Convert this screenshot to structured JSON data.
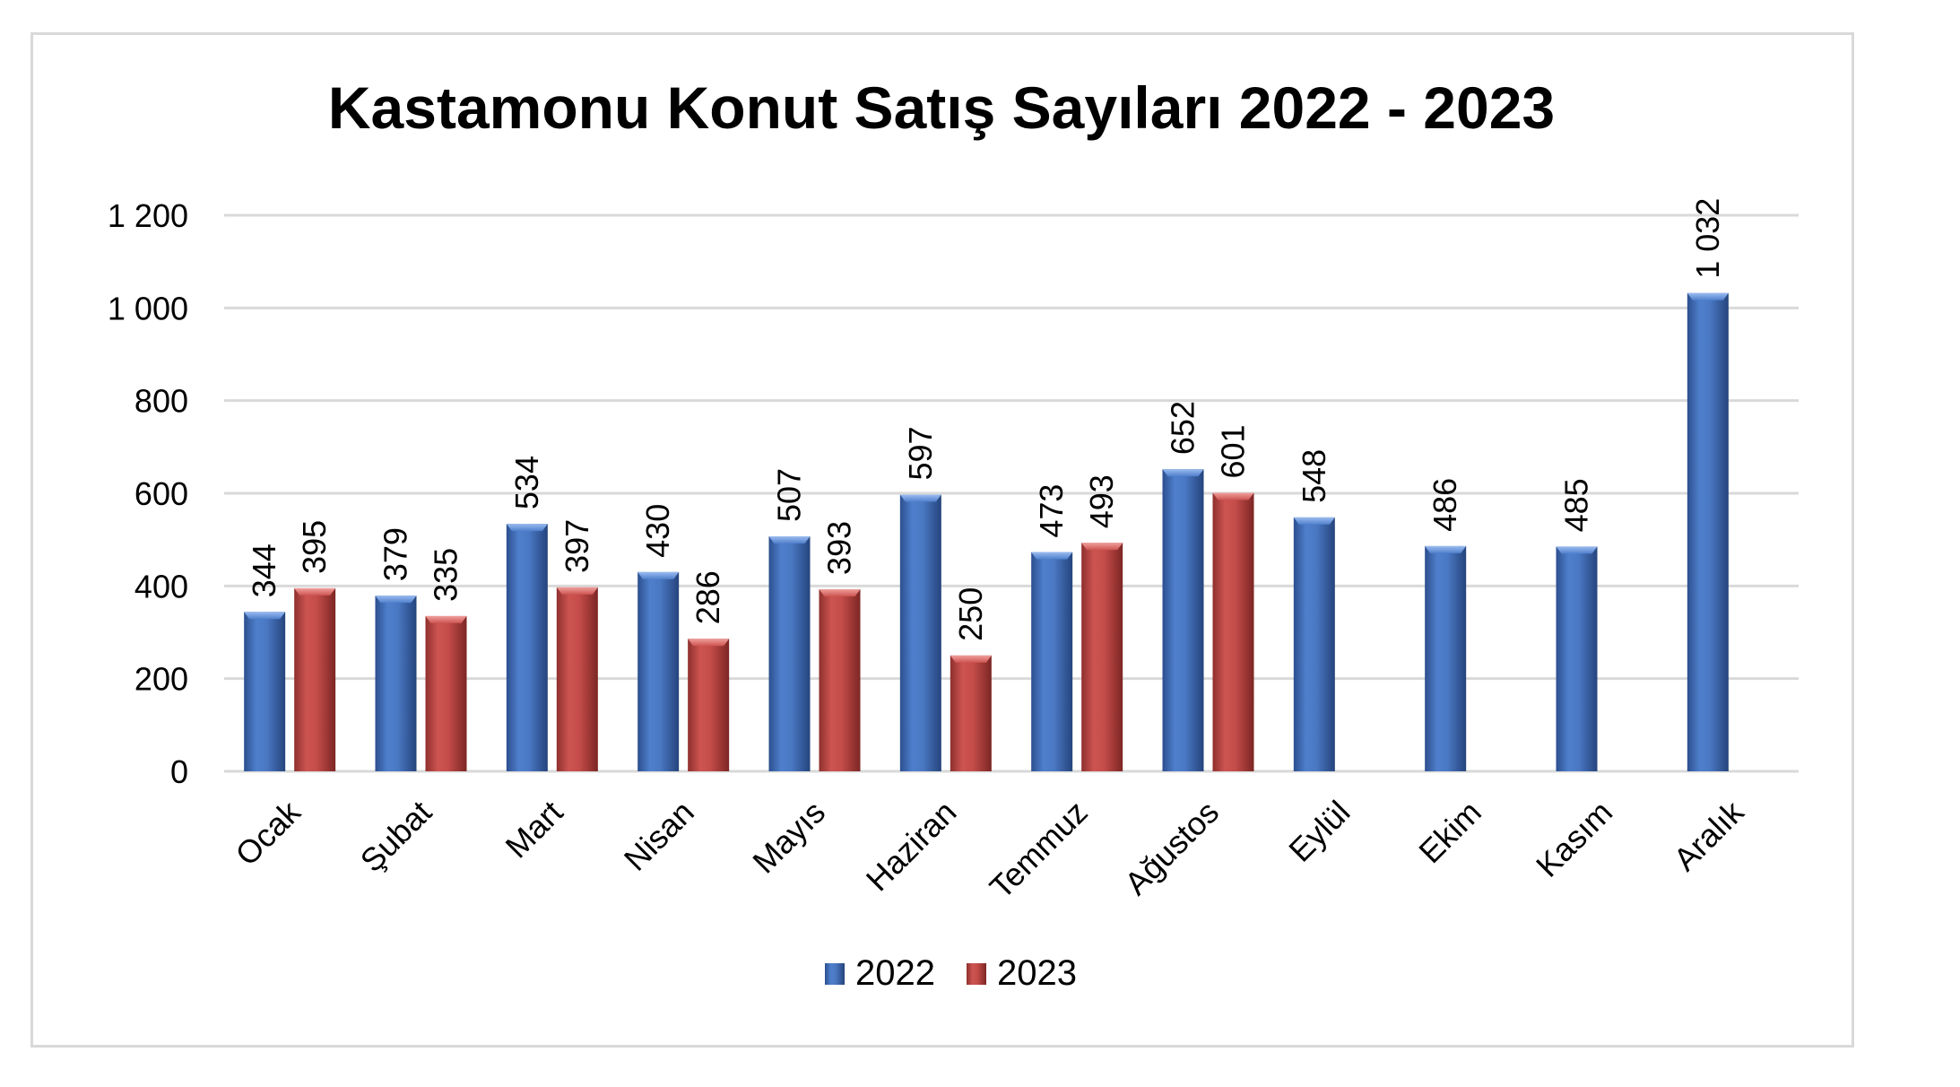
{
  "chart_data": {
    "type": "bar",
    "title": "Kastamonu Konut Satış Sayıları 2022 - 2023",
    "xlabel": "",
    "ylabel": "",
    "ylim": [
      0,
      1200
    ],
    "y_ticks": [
      0,
      200,
      400,
      600,
      800,
      1000,
      1200
    ],
    "y_tick_labels": [
      "0",
      "200",
      "400",
      "600",
      "800",
      "1 000",
      "1 200"
    ],
    "categories": [
      "Ocak",
      "Şubat",
      "Mart",
      "Nisan",
      "Mayıs",
      "Haziran",
      "Temmuz",
      "Ağustos",
      "Eylül",
      "Ekim",
      "Kasım",
      "Aralık"
    ],
    "series": [
      {
        "name": "2022",
        "color": "#4472c4",
        "values": [
          344,
          379,
          534,
          430,
          507,
          597,
          473,
          652,
          548,
          486,
          485,
          1032
        ],
        "labels": [
          "344",
          "379",
          "534",
          "430",
          "507",
          "597",
          "473",
          "652",
          "548",
          "486",
          "485",
          "1 032"
        ]
      },
      {
        "name": "2023",
        "color": "#c0504d",
        "values": [
          395,
          335,
          397,
          286,
          393,
          250,
          493,
          601,
          null,
          null,
          null,
          null
        ],
        "labels": [
          "395",
          "335",
          "397",
          "286",
          "393",
          "250",
          "493",
          "601",
          null,
          null,
          null,
          null
        ]
      }
    ],
    "grid": true,
    "legend_position": "bottom",
    "data_labels": "vertical, above bars"
  }
}
